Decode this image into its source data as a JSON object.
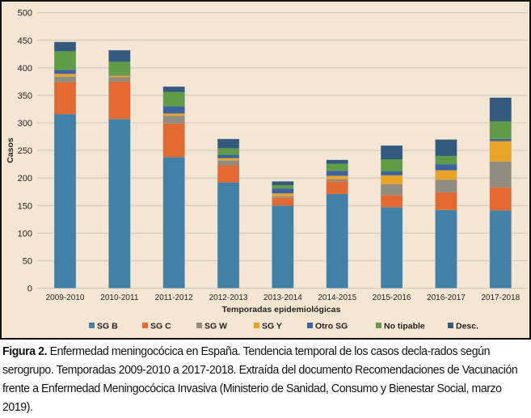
{
  "chart_data": {
    "type": "bar",
    "stacked": true,
    "title": "",
    "xlabel": "Temporadas epidemiológicas",
    "ylabel": "Casos",
    "ylim": [
      0,
      500
    ],
    "yticks": [
      0,
      50,
      100,
      150,
      200,
      250,
      300,
      350,
      400,
      450,
      500
    ],
    "grid": true,
    "legend_position": "bottom",
    "categories": [
      "2009-2010",
      "2010-2011",
      "2011-2012",
      "2012-2013",
      "2013-2014",
      "2014-2015",
      "2015-2016",
      "2016-2017",
      "2017-2018"
    ],
    "series": [
      {
        "name": "SG B",
        "color": "#4281a7",
        "values": [
          316,
          307,
          238,
          192,
          150,
          171,
          147,
          142,
          141
        ]
      },
      {
        "name": "SG C",
        "color": "#e06a32",
        "values": [
          58,
          68,
          61,
          31,
          14,
          23,
          22,
          32,
          42
        ]
      },
      {
        "name": "SG W",
        "color": "#918c80",
        "values": [
          10,
          8,
          14,
          9,
          3,
          4,
          20,
          23,
          47
        ]
      },
      {
        "name": "SG Y",
        "color": "#e9a427",
        "values": [
          5,
          3,
          4,
          4,
          5,
          6,
          16,
          17,
          37
        ]
      },
      {
        "name": "Otro SG",
        "color": "#3c62a0",
        "values": [
          7,
          1,
          13,
          6,
          9,
          9,
          7,
          11,
          4
        ]
      },
      {
        "name": "No tipable",
        "color": "#5e9c47",
        "values": [
          34,
          24,
          26,
          12,
          6,
          13,
          22,
          15,
          32
        ]
      },
      {
        "name": "Desc.",
        "color": "#34597f",
        "values": [
          17,
          21,
          10,
          17,
          7,
          7,
          25,
          30,
          43
        ]
      }
    ]
  },
  "caption": {
    "label": "Figura 2.",
    "text": " Enfermedad meningocócica en España. Tendencia temporal de los casos decla-rados según serogrupo. Temporadas 2009-2010 a 2017-2018. Extraída del documento Recomendaciones de Vacunación frente a Enfermedad Meningocócica Invasiva (Ministerio de Sanidad, Consumo y Bienestar Social, marzo 2019)."
  },
  "colors": {
    "background": "#f5e6d4",
    "grid": "#d9cbbb",
    "frame": "#111111"
  }
}
